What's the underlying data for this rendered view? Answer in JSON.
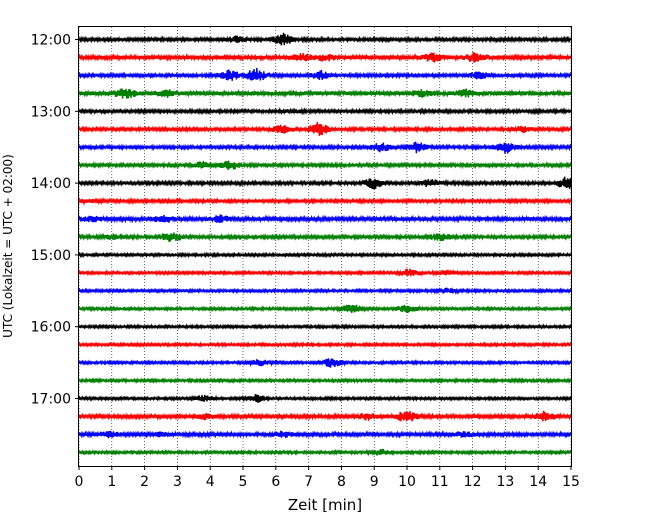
{
  "chart_data": {
    "type": "line",
    "title": "",
    "xlabel": "Zeit  [min]",
    "ylabel": "UTC (Lokalzeit = UTC + 02:00)",
    "xlim": [
      0,
      15
    ],
    "x_ticks": [
      "0",
      "1",
      "2",
      "3",
      "4",
      "5",
      "6",
      "7",
      "8",
      "9",
      "10",
      "11",
      "12",
      "13",
      "14",
      "15"
    ],
    "y_tick_labels": [
      "12:00",
      "13:00",
      "14:00",
      "15:00",
      "16:00",
      "17:00"
    ],
    "y_tick_hours": [
      "12:00",
      "13:00",
      "14:00",
      "15:00",
      "16:00",
      "17:00"
    ],
    "grid": "vertical dotted",
    "trace_interval_min": 15,
    "start_time": "12:00",
    "colors_cycle": [
      "#000000",
      "#ff0000",
      "#0000ff",
      "#008000"
    ],
    "traces": [
      {
        "time": "12:00",
        "color": "#000000",
        "amplitude": 0.18,
        "bursts": [
          [
            4.8,
            0.5
          ],
          [
            6.2,
            0.9
          ]
        ]
      },
      {
        "time": "12:15",
        "color": "#ff0000",
        "amplitude": 0.25,
        "bursts": [
          [
            6.8,
            0.6
          ],
          [
            7.5,
            0.6
          ],
          [
            10.8,
            0.7
          ],
          [
            12.1,
            0.8
          ]
        ]
      },
      {
        "time": "12:30",
        "color": "#0000ff",
        "amplitude": 0.18,
        "bursts": [
          [
            4.6,
            0.8
          ],
          [
            5.4,
            1.0
          ],
          [
            7.4,
            0.7
          ],
          [
            12.2,
            0.6
          ]
        ]
      },
      {
        "time": "12:45",
        "color": "#008000",
        "amplitude": 0.25,
        "bursts": [
          [
            1.4,
            0.8
          ],
          [
            2.7,
            0.6
          ],
          [
            10.5,
            0.6
          ],
          [
            11.8,
            0.6
          ]
        ]
      },
      {
        "time": "13:00",
        "color": "#000000",
        "amplitude": 0.18,
        "bursts": [
          [
            6.5,
            0.3
          ]
        ]
      },
      {
        "time": "13:15",
        "color": "#ff0000",
        "amplitude": 0.18,
        "bursts": [
          [
            6.2,
            0.7
          ],
          [
            7.3,
            1.0
          ],
          [
            13.5,
            0.5
          ]
        ]
      },
      {
        "time": "13:30",
        "color": "#0000ff",
        "amplitude": 0.18,
        "bursts": [
          [
            9.2,
            0.7
          ],
          [
            10.3,
            0.8
          ],
          [
            13.0,
            0.9
          ]
        ]
      },
      {
        "time": "13:45",
        "color": "#008000",
        "amplitude": 0.18,
        "bursts": [
          [
            3.8,
            0.6
          ],
          [
            4.6,
            0.7
          ]
        ]
      },
      {
        "time": "14:00",
        "color": "#000000",
        "amplitude": 0.18,
        "bursts": [
          [
            9.0,
            0.8
          ],
          [
            10.7,
            0.6
          ],
          [
            14.9,
            1.0
          ]
        ]
      },
      {
        "time": "14:15",
        "color": "#ff0000",
        "amplitude": 0.18,
        "bursts": [
          [
            0.3,
            0.3
          ]
        ]
      },
      {
        "time": "14:30",
        "color": "#0000ff",
        "amplitude": 0.22,
        "bursts": [
          [
            0.4,
            0.5
          ],
          [
            2.6,
            0.6
          ],
          [
            4.3,
            0.6
          ]
        ]
      },
      {
        "time": "14:45",
        "color": "#008000",
        "amplitude": 0.18,
        "bursts": [
          [
            1.1,
            0.5
          ],
          [
            2.8,
            0.8
          ],
          [
            11.0,
            0.6
          ]
        ]
      },
      {
        "time": "15:00",
        "color": "#000000",
        "amplitude": 0.15,
        "bursts": []
      },
      {
        "time": "15:15",
        "color": "#ff0000",
        "amplitude": 0.15,
        "bursts": [
          [
            10.1,
            0.6
          ],
          [
            11.2,
            0.4
          ]
        ]
      },
      {
        "time": "15:30",
        "color": "#0000ff",
        "amplitude": 0.15,
        "bursts": [
          [
            11.2,
            0.4
          ]
        ]
      },
      {
        "time": "15:45",
        "color": "#008000",
        "amplitude": 0.15,
        "bursts": [
          [
            8.3,
            0.7
          ],
          [
            10.0,
            0.6
          ]
        ]
      },
      {
        "time": "16:00",
        "color": "#000000",
        "amplitude": 0.15,
        "bursts": []
      },
      {
        "time": "16:15",
        "color": "#ff0000",
        "amplitude": 0.15,
        "bursts": []
      },
      {
        "time": "16:30",
        "color": "#0000ff",
        "amplitude": 0.15,
        "bursts": [
          [
            5.5,
            0.5
          ],
          [
            7.7,
            0.7
          ]
        ]
      },
      {
        "time": "16:45",
        "color": "#008000",
        "amplitude": 0.15,
        "bursts": []
      },
      {
        "time": "17:00",
        "color": "#000000",
        "amplitude": 0.15,
        "bursts": [
          [
            3.8,
            0.5
          ],
          [
            5.4,
            0.6
          ]
        ]
      },
      {
        "time": "17:15",
        "color": "#ff0000",
        "amplitude": 0.2,
        "bursts": [
          [
            3.8,
            0.5
          ],
          [
            8.8,
            0.6
          ],
          [
            10.0,
            0.9
          ],
          [
            14.2,
            0.8
          ]
        ]
      },
      {
        "time": "17:30",
        "color": "#0000ff",
        "amplitude": 0.2,
        "bursts": [
          [
            0.9,
            0.5
          ],
          [
            2.5,
            0.4
          ],
          [
            6.2,
            0.5
          ],
          [
            11.7,
            0.5
          ]
        ]
      },
      {
        "time": "17:45",
        "color": "#008000",
        "amplitude": 0.15,
        "bursts": [
          [
            9.2,
            0.5
          ]
        ]
      }
    ]
  }
}
